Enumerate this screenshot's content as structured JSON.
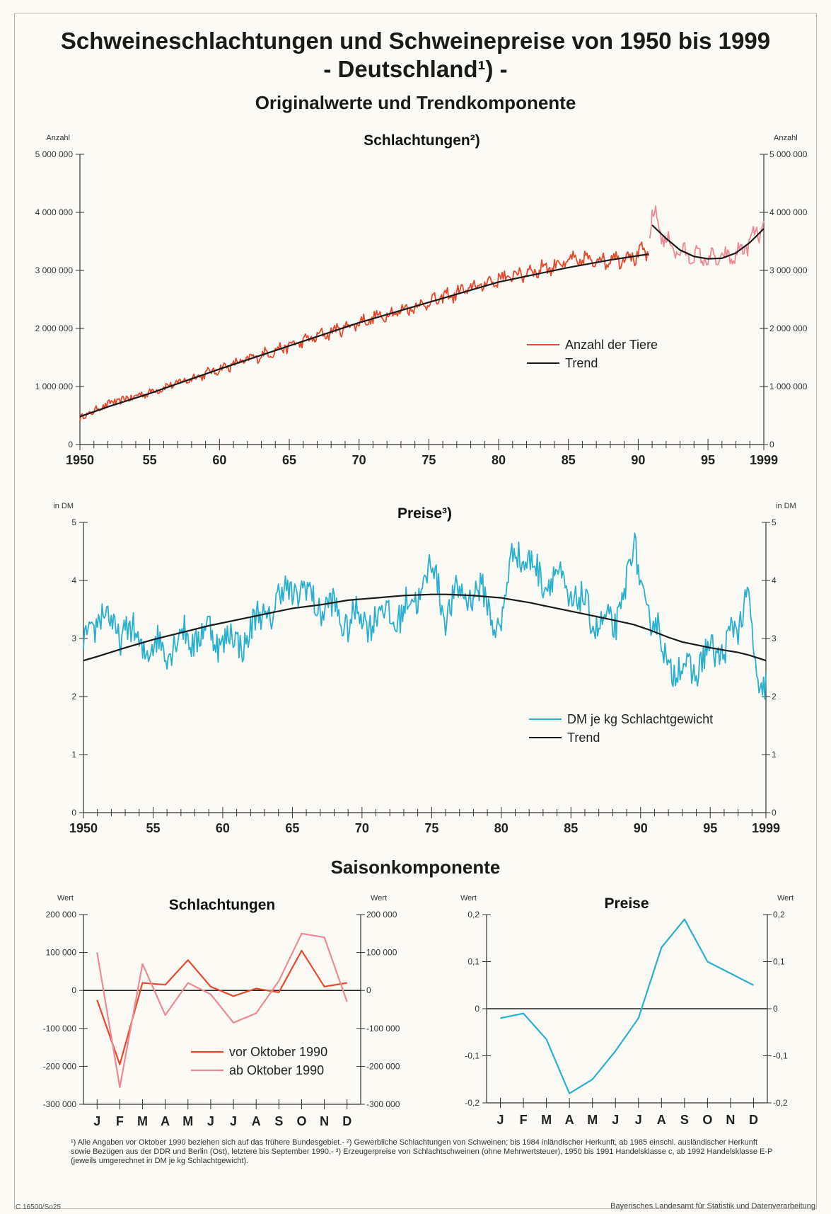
{
  "title": "Schweineschlachtungen und Schweinepreise von 1950 bis 1999",
  "subtitle": "- Deutschland¹) -",
  "section_title": "Originalwerte und Trendkomponente",
  "season_title": "Saisonkomponente",
  "footnote": "¹) Alle Angaben vor Oktober 1990 beziehen sich auf das frühere Bundesgebiet.- ²) Gewerbliche Schlachtungen von Schweinen; bis 1984 inländischer Herkunft, ab 1985 einschl. ausländischer Herkunft sowie Bezügen aus der DDR und Berlin (Ost), letztere bis September 1990.- ³) Erzeugerpreise von Schlachtschweinen (ohne Mehrwertsteuer), 1950 bis 1991 Handelsklasse c, ab 1992 Handelsklasse E-P (jeweils umgerechnet in DM je kg Schlachtgewicht).",
  "code_left": "C 16500/So25",
  "code_right": "Bayerisches Landesamt für Statistik und Datenverarbeitung",
  "colors": {
    "red": "#e64a2e",
    "pink": "#ef8a94",
    "cyan": "#2ab0cf",
    "trend": "#1a1a1a"
  },
  "chart_data": [
    {
      "type": "line",
      "title": "Schlachtungen²)",
      "ylabel_left": "Anzahl",
      "ylabel_right": "Anzahl",
      "xlim": [
        1950,
        1999
      ],
      "ylim": [
        0,
        5000000
      ],
      "x_ticks": [
        "1950",
        "55",
        "60",
        "65",
        "70",
        "75",
        "80",
        "85",
        "90",
        "95",
        "1999"
      ],
      "y_ticks_left": [
        "0",
        "1 000 000",
        "2 000 000",
        "3 000 000",
        "4 000 000",
        "5 000 000"
      ],
      "y_ticks_right": [
        "0",
        "1 000 000",
        "2 000 000",
        "3 000 000",
        "4 000 000",
        "5 000 000"
      ],
      "legend": [
        "Anzahl der Tiere",
        "Trend"
      ],
      "x": [
        1950,
        1952,
        1955,
        1960,
        1965,
        1970,
        1975,
        1980,
        1985,
        1988,
        1990.75,
        1991,
        1992,
        1993,
        1994,
        1995,
        1996,
        1997,
        1998,
        1999
      ],
      "series": [
        {
          "name": "Anzahl der Tiere",
          "values": [
            450000,
            700000,
            900000,
            1300000,
            1700000,
            2100000,
            2450000,
            2850000,
            3150000,
            3200000,
            3300000,
            4000000,
            3500000,
            3300000,
            3250000,
            3200000,
            3200000,
            3250000,
            3500000,
            3750000
          ]
        },
        {
          "name": "Trend",
          "values": [
            480000,
            650000,
            880000,
            1300000,
            1700000,
            2100000,
            2450000,
            2800000,
            3050000,
            3180000,
            3280000,
            3780000,
            3550000,
            3350000,
            3240000,
            3200000,
            3210000,
            3300000,
            3480000,
            3720000
          ]
        }
      ]
    },
    {
      "type": "line",
      "title": "Preise³)",
      "ylabel_left": "in DM",
      "ylabel_right": "in DM",
      "xlim": [
        1950,
        1999
      ],
      "ylim": [
        0,
        5
      ],
      "x_ticks": [
        "1950",
        "55",
        "60",
        "65",
        "70",
        "75",
        "80",
        "85",
        "90",
        "95",
        "1999"
      ],
      "y_ticks_left": [
        "0",
        "1",
        "2",
        "3",
        "4",
        "5"
      ],
      "y_ticks_right": [
        "0",
        "1",
        "2",
        "3",
        "4",
        "5"
      ],
      "legend": [
        "DM je kg Schlachtgewicht",
        "Trend"
      ],
      "x": [
        1950,
        1951,
        1953,
        1955,
        1957,
        1959,
        1961,
        1963,
        1965,
        1967,
        1969,
        1971,
        1973,
        1975,
        1976,
        1978,
        1980,
        1981,
        1982,
        1984,
        1986,
        1988,
        1989.5,
        1990.5,
        1992,
        1993,
        1995,
        1997,
        1997.7,
        1998.5,
        1999
      ],
      "series": [
        {
          "name": "DM je kg Schlachtgewicht",
          "values": [
            2.9,
            3.4,
            3.1,
            2.8,
            3.0,
            3.1,
            2.9,
            3.4,
            3.9,
            3.6,
            3.3,
            3.4,
            3.4,
            4.2,
            3.5,
            3.9,
            3.2,
            4.7,
            4.2,
            4.0,
            3.5,
            3.1,
            4.5,
            3.5,
            2.6,
            2.4,
            2.7,
            3.1,
            4.0,
            1.7,
            2.3
          ]
        },
        {
          "name": "Trend",
          "values": [
            2.62,
            2.69,
            2.84,
            2.98,
            3.1,
            3.22,
            3.32,
            3.42,
            3.52,
            3.58,
            3.66,
            3.7,
            3.74,
            3.76,
            3.76,
            3.74,
            3.7,
            3.66,
            3.62,
            3.52,
            3.42,
            3.32,
            3.24,
            3.16,
            3.02,
            2.94,
            2.84,
            2.76,
            2.72,
            2.66,
            2.62
          ]
        }
      ]
    },
    {
      "type": "line",
      "title": "Schlachtungen",
      "ylabel_left": "Wert",
      "ylabel_right": "Wert",
      "categories": [
        "J",
        "F",
        "M",
        "A",
        "M",
        "J",
        "J",
        "A",
        "S",
        "O",
        "N",
        "D"
      ],
      "ylim": [
        -300000,
        200000
      ],
      "y_ticks_left": [
        "-300 000",
        "-200 000",
        "-100 000",
        "0",
        "100 000",
        "200 000"
      ],
      "y_ticks_right": [
        "-300 000",
        "-200 000",
        "-100 000",
        "0",
        "100 000",
        "200 000"
      ],
      "legend": [
        "vor Oktober 1990",
        "ab Oktober 1990"
      ],
      "series": [
        {
          "name": "vor Oktober 1990",
          "values": [
            -25000,
            -195000,
            20000,
            15000,
            80000,
            10000,
            -15000,
            5000,
            -5000,
            105000,
            10000,
            20000
          ]
        },
        {
          "name": "ab Oktober 1990",
          "values": [
            100000,
            -255000,
            70000,
            -65000,
            20000,
            -10000,
            -85000,
            -60000,
            25000,
            150000,
            140000,
            -30000
          ]
        }
      ]
    },
    {
      "type": "line",
      "title": "Preise",
      "ylabel_left": "Wert",
      "ylabel_right": "Wert",
      "categories": [
        "J",
        "F",
        "M",
        "A",
        "M",
        "J",
        "J",
        "A",
        "S",
        "O",
        "N",
        "D"
      ],
      "ylim": [
        -0.2,
        0.2
      ],
      "y_ticks_left": [
        "-0,2",
        "-0,1",
        "0",
        "0,1",
        "0,2"
      ],
      "y_ticks_right": [
        "-0,2",
        "-0,1",
        "0",
        "0,1",
        "0,2"
      ],
      "series": [
        {
          "values": [
            -0.02,
            -0.01,
            -0.065,
            -0.18,
            -0.15,
            -0.09,
            -0.02,
            0.13,
            0.19,
            0.1,
            0.075,
            0.05
          ]
        }
      ]
    }
  ]
}
